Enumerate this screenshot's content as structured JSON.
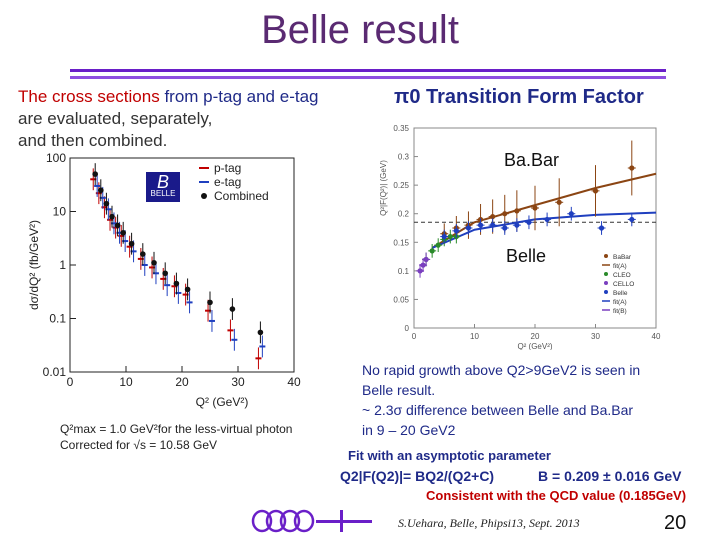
{
  "title": "Belle result",
  "left_header": {
    "part1": "The cross sections ",
    "part2": "from p-tag and e-tag",
    "line2": "are evaluated, separately,",
    "line3": "and then combined."
  },
  "right_header": "π0 Transition Form Factor",
  "left_notes": {
    "q2max": "Q²max = 1.0 GeV²for the less-virtual photon",
    "corrected": "Corrected for √s = 10.58 GeV"
  },
  "right_notes": {
    "line1": "No rapid growth above Q2>9GeV2 is seen in",
    "line2": "Belle result.",
    "line3": "~ 2.3σ difference between Belle and Ba.Bar",
    "line4": "in 9 – 20 GeV2",
    "fit": "Fit with an asymptotic parameter",
    "formula": "Q2|F(Q2)|= BQ2/(Q2+C)",
    "bvalue": "B = 0.209 ± 0.016 GeV",
    "consistent": "Consistent with the QCD value (0.185GeV)"
  },
  "footer": "S.Uehara, Belle, Phipsi13, Sept. 2013",
  "page_number": "20",
  "colors": {
    "title": "#5a2a72",
    "rule": "#6a1fc8",
    "navy": "#1f2a88",
    "red": "#c00000"
  },
  "chart_data": [
    {
      "type": "scatter",
      "title": "",
      "xlabel": "Q² (GeV²)",
      "ylabel": "dσ/dQ² (fb/GeV²)",
      "xlim": [
        0,
        40
      ],
      "ylim": [
        0.01,
        100
      ],
      "log_y": true,
      "x_ticks": [
        "0",
        "10",
        "20",
        "30",
        "40"
      ],
      "y_ticks": [
        "0.01",
        "0.1",
        "1",
        "10",
        "100"
      ],
      "logo_text": "BELLE",
      "legend_position": "top-right",
      "series": [
        {
          "name": "p-tag",
          "color": "#c00000",
          "x": [
            4.5,
            5.5,
            6.5,
            7.5,
            8.5,
            9.5,
            11,
            13,
            15,
            17,
            19,
            21,
            25,
            29,
            34
          ],
          "y": [
            40,
            22,
            12,
            7,
            5,
            3.5,
            2.2,
            1.3,
            0.9,
            0.55,
            0.4,
            0.28,
            0.14,
            0.06,
            0.018
          ]
        },
        {
          "name": "e-tag",
          "color": "#1f3fbf",
          "x": [
            4.5,
            5.5,
            6.5,
            7.5,
            8.5,
            9.5,
            11,
            13,
            15,
            17,
            19,
            21,
            25,
            29,
            34
          ],
          "y": [
            30,
            18,
            11,
            6,
            4,
            2.8,
            1.8,
            1.0,
            0.7,
            0.42,
            0.3,
            0.2,
            0.09,
            0.04,
            0.03
          ]
        },
        {
          "name": "Combined",
          "color": "#111111",
          "x": [
            4.5,
            5.5,
            6.5,
            7.5,
            8.5,
            9.5,
            11,
            13,
            15,
            17,
            19,
            21,
            25,
            29,
            34
          ],
          "y": [
            50,
            25,
            14,
            8,
            5.5,
            4,
            2.5,
            1.6,
            1.1,
            0.7,
            0.45,
            0.35,
            0.2,
            0.15,
            0.055
          ]
        }
      ]
    },
    {
      "type": "scatter",
      "title": "",
      "xlabel": "Q² (GeV²)",
      "ylabel": "Q²|F(Q²)| (GeV)",
      "xlim": [
        0,
        40
      ],
      "ylim": [
        0,
        0.35
      ],
      "x_ticks": [
        "0",
        "10",
        "20",
        "30",
        "40"
      ],
      "y_ticks": [
        "0",
        "0.05",
        "0.1",
        "0.15",
        "0.2",
        "0.25",
        "0.3",
        "0.35"
      ],
      "asymptote": 0.185,
      "annotations": [
        "Ba.Bar",
        "Belle"
      ],
      "legend_position": "bottom-right",
      "legend": [
        "BaBar",
        "fit(A)",
        "CLEO",
        "CELLO",
        "Belle",
        "fit(A)",
        "fit(B)"
      ],
      "series": [
        {
          "name": "BaBar",
          "color": "#8b4513",
          "x": [
            5,
            7,
            9,
            11,
            13,
            15,
            17,
            20,
            24,
            30,
            36
          ],
          "y": [
            0.165,
            0.175,
            0.18,
            0.19,
            0.195,
            0.2,
            0.205,
            0.21,
            0.22,
            0.24,
            0.28
          ]
        },
        {
          "name": "CLEO",
          "color": "#2a8a2a",
          "x": [
            2,
            3,
            4,
            5,
            6,
            7
          ],
          "y": [
            0.12,
            0.135,
            0.145,
            0.155,
            0.16,
            0.16
          ]
        },
        {
          "name": "CELLO",
          "color": "#7a3fbf",
          "x": [
            1,
            1.5,
            2
          ],
          "y": [
            0.1,
            0.11,
            0.12
          ]
        },
        {
          "name": "Belle",
          "color": "#1f3fbf",
          "x": [
            5,
            7,
            9,
            11,
            13,
            15,
            17,
            19,
            22,
            26,
            31,
            36
          ],
          "y": [
            0.16,
            0.17,
            0.175,
            0.18,
            0.18,
            0.175,
            0.18,
            0.185,
            0.19,
            0.2,
            0.175,
            0.19
          ]
        },
        {
          "name": "BaBar fit",
          "color": "#8b4513",
          "x": [
            3,
            10,
            20,
            30,
            40
          ],
          "y": [
            0.14,
            0.185,
            0.215,
            0.245,
            0.27
          ]
        },
        {
          "name": "Belle fit",
          "color": "#1f3fbf",
          "x": [
            3,
            10,
            20,
            30,
            40
          ],
          "y": [
            0.14,
            0.172,
            0.19,
            0.198,
            0.202
          ]
        }
      ]
    }
  ]
}
